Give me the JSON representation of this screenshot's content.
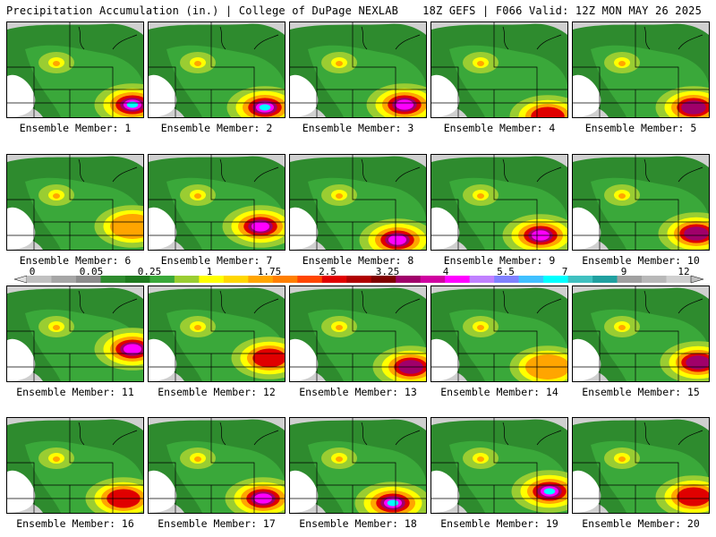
{
  "header": {
    "title": "Precipitation Accumulation (in.) | College of DuPage NEXLAB",
    "run_info": "18Z GEFS | F066 Valid: 12Z MON MAY 26 2025"
  },
  "members": [
    {
      "label": "Ensemble Member: 1",
      "num": 1,
      "max_inches": 7
    },
    {
      "label": "Ensemble Member: 2",
      "num": 2,
      "max_inches": 7
    },
    {
      "label": "Ensemble Member: 3",
      "num": 3,
      "max_inches": 5.5
    },
    {
      "label": "Ensemble Member: 4",
      "num": 4,
      "max_inches": 3.25
    },
    {
      "label": "Ensemble Member: 5",
      "num": 5,
      "max_inches": 4
    },
    {
      "label": "Ensemble Member: 6",
      "num": 6,
      "max_inches": 2
    },
    {
      "label": "Ensemble Member: 7",
      "num": 7,
      "max_inches": 5.5
    },
    {
      "label": "Ensemble Member: 8",
      "num": 8,
      "max_inches": 5.5
    },
    {
      "label": "Ensemble Member: 9",
      "num": 9,
      "max_inches": 5.5
    },
    {
      "label": "Ensemble Member: 10",
      "num": 10,
      "max_inches": 4
    },
    {
      "label": "Ensemble Member: 11",
      "num": 11,
      "max_inches": 5.5
    },
    {
      "label": "Ensemble Member: 12",
      "num": 12,
      "max_inches": 3.25
    },
    {
      "label": "Ensemble Member: 13",
      "num": 13,
      "max_inches": 4
    },
    {
      "label": "Ensemble Member: 14",
      "num": 14,
      "max_inches": 2.5
    },
    {
      "label": "Ensemble Member: 15",
      "num": 15,
      "max_inches": 4
    },
    {
      "label": "Ensemble Member: 16",
      "num": 16,
      "max_inches": 3.25
    },
    {
      "label": "Ensemble Member: 17",
      "num": 17,
      "max_inches": 5.5
    },
    {
      "label": "Ensemble Member: 18",
      "num": 18,
      "max_inches": 7
    },
    {
      "label": "Ensemble Member: 19",
      "num": 19,
      "max_inches": 7
    },
    {
      "label": "Ensemble Member: 20",
      "num": 20,
      "max_inches": 3.25
    }
  ],
  "scale": {
    "tick_labels": [
      "0",
      "0.05",
      "0.25",
      "1",
      "1.75",
      "2.5",
      "3.25",
      "4",
      "5.5",
      "7",
      "9",
      "12"
    ],
    "colors": [
      "#c0c0c0",
      "#a6a6a6",
      "#8c8c8c",
      "#2e8b2e",
      "#1f7a1f",
      "#3aa83a",
      "#9acd32",
      "#ffff00",
      "#ffd700",
      "#ffa500",
      "#ff7f00",
      "#ff4500",
      "#e00000",
      "#b00000",
      "#800000",
      "#a0006a",
      "#d000a0",
      "#ff00ff",
      "#c080ff",
      "#8080ff",
      "#40c0ff",
      "#00ffff",
      "#40c0c0",
      "#20a0a0",
      "#a0a0a0",
      "#b8b8b8",
      "#d0d0d0"
    ]
  },
  "colors": {
    "map_background": "#ffffff",
    "low_precip": "#c8c8c8",
    "light_green": "#3aa83a",
    "heavy_core": "#e00000",
    "extreme_core": "#ff00ff",
    "border": "#000000"
  }
}
